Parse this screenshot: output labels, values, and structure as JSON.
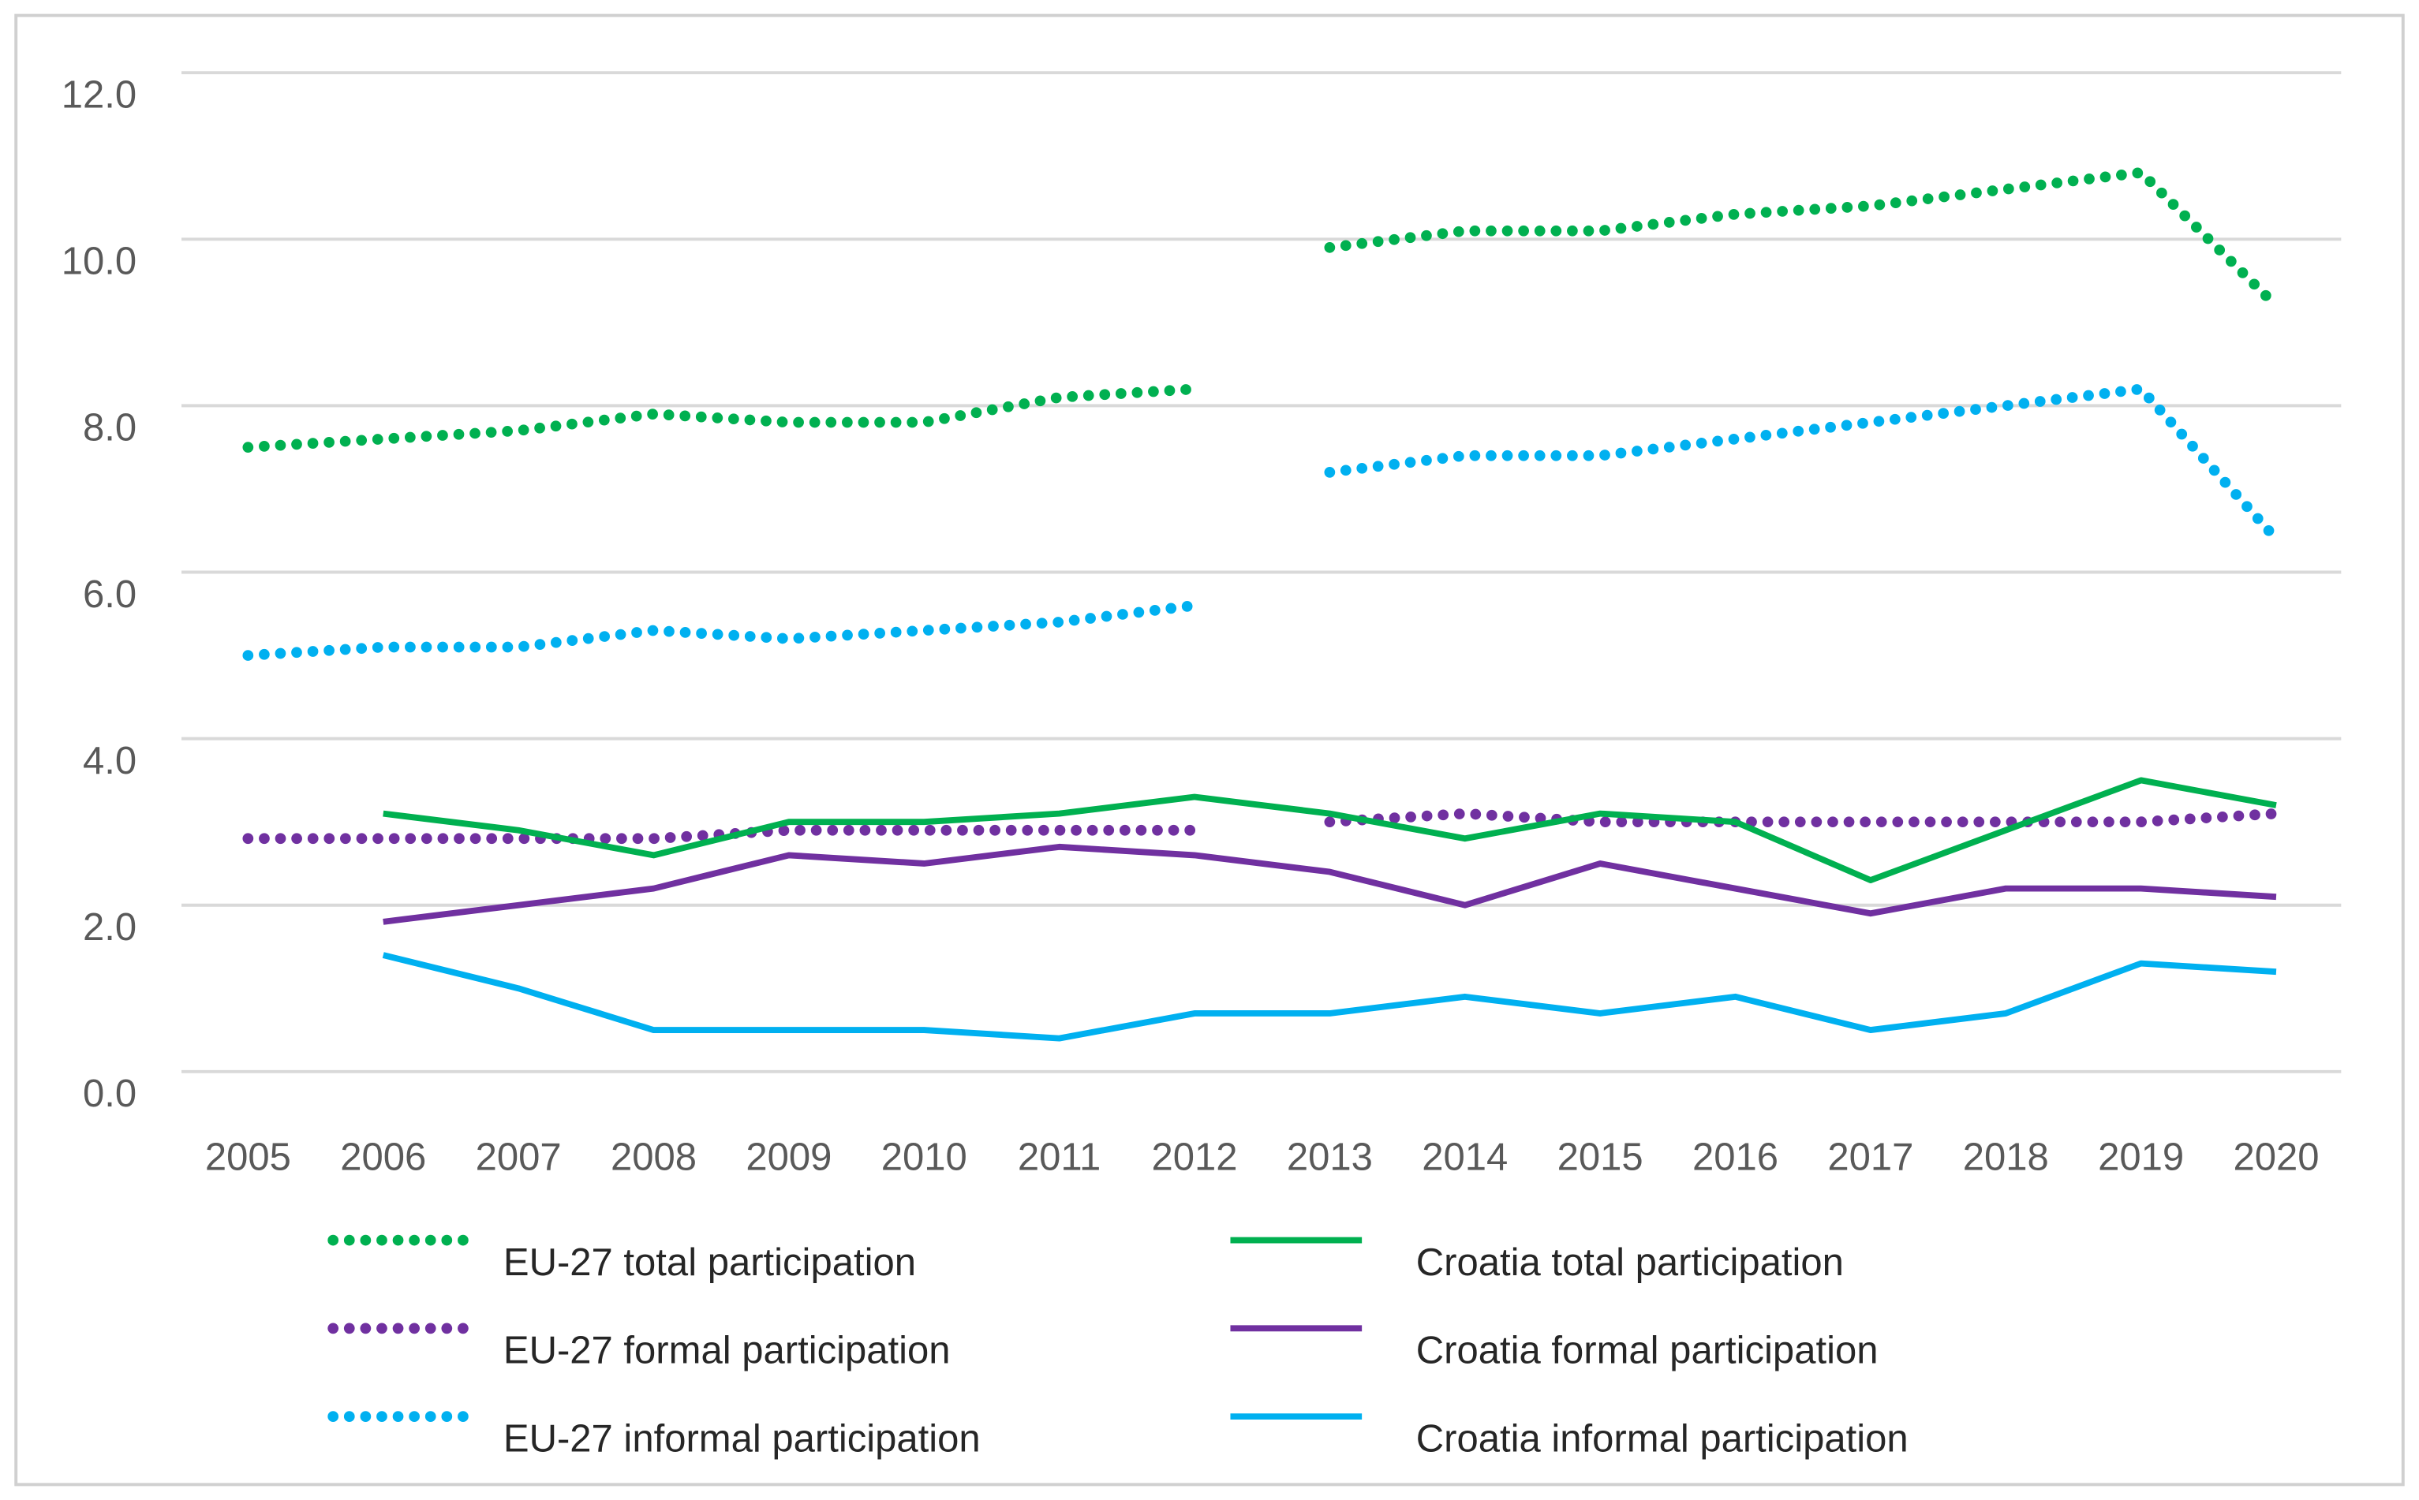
{
  "chart_data": {
    "type": "line",
    "categories": [
      "2005",
      "2006",
      "2007",
      "2008",
      "2009",
      "2010",
      "2011",
      "2012",
      "2013",
      "2014",
      "2015",
      "2016",
      "2017",
      "2018",
      "2019",
      "2020"
    ],
    "series_break_after": "2012",
    "ylim": [
      0,
      12
    ],
    "yticks": [
      {
        "value": 0,
        "label": "0.0"
      },
      {
        "value": 2,
        "label": "2.0"
      },
      {
        "value": 4,
        "label": "4.0"
      },
      {
        "value": 6,
        "label": "6.0"
      },
      {
        "value": 8,
        "label": "8.0"
      },
      {
        "value": 10,
        "label": "10.0"
      },
      {
        "value": 12,
        "label": "12.0"
      }
    ],
    "grid": true,
    "legend": "bottom",
    "series": [
      {
        "name": "EU-27 total participation",
        "color": "#00b050",
        "style": "dotted",
        "values": [
          7.5,
          7.6,
          7.7,
          7.9,
          7.8,
          7.8,
          8.1,
          8.2,
          9.9,
          10.1,
          10.1,
          10.3,
          10.4,
          10.6,
          10.8,
          9.2
        ]
      },
      {
        "name": "EU-27 formal participation",
        "color": "#7030a0",
        "style": "dotted",
        "values": [
          2.8,
          2.8,
          2.8,
          2.8,
          2.9,
          2.9,
          2.9,
          2.9,
          3.0,
          3.1,
          3.0,
          3.0,
          3.0,
          3.0,
          3.0,
          3.1
        ]
      },
      {
        "name": "EU-27 informal participation",
        "color": "#00b0f0",
        "style": "dotted",
        "values": [
          5.0,
          5.1,
          5.1,
          5.3,
          5.2,
          5.3,
          5.4,
          5.6,
          7.2,
          7.4,
          7.4,
          7.6,
          7.8,
          8.0,
          8.2,
          6.4
        ]
      },
      {
        "name": "Croatia total participation",
        "color": "#00b050",
        "style": "solid",
        "values": [
          null,
          3.1,
          2.9,
          2.6,
          3.0,
          3.0,
          3.1,
          3.3,
          3.1,
          2.8,
          3.1,
          3.0,
          2.3,
          2.9,
          3.5,
          3.2
        ]
      },
      {
        "name": "Croatia formal participation",
        "color": "#7030a0",
        "style": "solid",
        "values": [
          null,
          1.8,
          2.0,
          2.2,
          2.6,
          2.5,
          2.7,
          2.6,
          2.4,
          2.0,
          2.5,
          2.2,
          1.9,
          2.2,
          2.2,
          2.1
        ]
      },
      {
        "name": "Croatia informal participation",
        "color": "#00b0f0",
        "style": "solid",
        "values": [
          null,
          1.4,
          1.0,
          0.5,
          0.5,
          0.5,
          0.4,
          0.7,
          0.7,
          0.9,
          0.7,
          0.9,
          0.5,
          0.7,
          1.3,
          1.2
        ]
      }
    ]
  }
}
